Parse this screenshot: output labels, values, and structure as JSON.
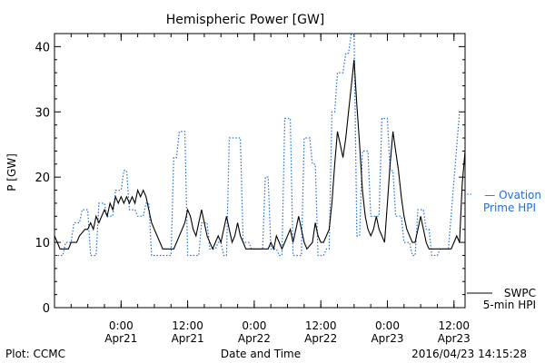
{
  "chart_data": {
    "type": "line",
    "title": "Hemispheric Power [GW]",
    "ylabel": "P [GW]",
    "xlabel": "Date and Time",
    "ylim": [
      0,
      42
    ],
    "yticks": [
      0,
      10,
      20,
      30,
      40
    ],
    "xlim": [
      "2016-04-20T12:00",
      "2016-04-23T14:00"
    ],
    "xticks": [
      {
        "t": "2016-04-21T00:00",
        "line1": "0:00",
        "line2": "Apr21"
      },
      {
        "t": "2016-04-21T12:00",
        "line1": "12:00",
        "line2": "Apr21"
      },
      {
        "t": "2016-04-22T00:00",
        "line1": "0:00",
        "line2": "Apr22"
      },
      {
        "t": "2016-04-22T12:00",
        "line1": "12:00",
        "line2": "Apr22"
      },
      {
        "t": "2016-04-23T00:00",
        "line1": "0:00",
        "line2": "Apr23"
      },
      {
        "t": "2016-04-23T12:00",
        "line1": "12:00",
        "line2": "Apr23"
      }
    ],
    "series": [
      {
        "name": "Ovation Prime HPI",
        "legend_lines": [
          "— Ovation",
          "Prime HPI"
        ],
        "color": "#1f6fd6",
        "style": "dotted",
        "points": [
          [
            "2016-04-20T12:00",
            8
          ],
          [
            "2016-04-20T13:30",
            8
          ],
          [
            "2016-04-20T14:00",
            10
          ],
          [
            "2016-04-20T15:00",
            10
          ],
          [
            "2016-04-20T15:30",
            13
          ],
          [
            "2016-04-20T16:30",
            13
          ],
          [
            "2016-04-20T17:00",
            15
          ],
          [
            "2016-04-20T18:00",
            15
          ],
          [
            "2016-04-20T18:30",
            8
          ],
          [
            "2016-04-20T19:30",
            8
          ],
          [
            "2016-04-20T20:00",
            16
          ],
          [
            "2016-04-20T21:00",
            16
          ],
          [
            "2016-04-20T21:30",
            14
          ],
          [
            "2016-04-20T22:30",
            14
          ],
          [
            "2016-04-20T23:00",
            18
          ],
          [
            "2016-04-21T00:00",
            18
          ],
          [
            "2016-04-21T00:30",
            21
          ],
          [
            "2016-04-21T01:00",
            21
          ],
          [
            "2016-04-21T01:30",
            15
          ],
          [
            "2016-04-21T02:30",
            15
          ],
          [
            "2016-04-21T03:00",
            14
          ],
          [
            "2016-04-21T04:00",
            14
          ],
          [
            "2016-04-21T04:30",
            16
          ],
          [
            "2016-04-21T05:00",
            16
          ],
          [
            "2016-04-21T05:30",
            8
          ],
          [
            "2016-04-21T09:00",
            8
          ],
          [
            "2016-04-21T09:30",
            23
          ],
          [
            "2016-04-21T10:00",
            23
          ],
          [
            "2016-04-21T10:30",
            27
          ],
          [
            "2016-04-21T11:30",
            27
          ],
          [
            "2016-04-21T12:00",
            8
          ],
          [
            "2016-04-21T14:00",
            8
          ],
          [
            "2016-04-21T14:30",
            13
          ],
          [
            "2016-04-21T15:30",
            13
          ],
          [
            "2016-04-21T16:00",
            9
          ],
          [
            "2016-04-21T17:00",
            9
          ],
          [
            "2016-04-21T17:30",
            10
          ],
          [
            "2016-04-21T18:00",
            10
          ],
          [
            "2016-04-21T18:30",
            8
          ],
          [
            "2016-04-21T19:00",
            8
          ],
          [
            "2016-04-21T19:30",
            26
          ],
          [
            "2016-04-21T21:30",
            26
          ],
          [
            "2016-04-21T22:00",
            10
          ],
          [
            "2016-04-21T23:00",
            10
          ],
          [
            "2016-04-21T23:30",
            9
          ],
          [
            "2016-04-22T01:30",
            9
          ],
          [
            "2016-04-22T02:00",
            20
          ],
          [
            "2016-04-22T02:30",
            20
          ],
          [
            "2016-04-22T03:00",
            9
          ],
          [
            "2016-04-22T04:00",
            9
          ],
          [
            "2016-04-22T04:30",
            8
          ],
          [
            "2016-04-22T05:00",
            8
          ],
          [
            "2016-04-22T05:30",
            29
          ],
          [
            "2016-04-22T06:30",
            29
          ],
          [
            "2016-04-22T07:00",
            8
          ],
          [
            "2016-04-22T08:30",
            8
          ],
          [
            "2016-04-22T09:00",
            26
          ],
          [
            "2016-04-22T10:00",
            26
          ],
          [
            "2016-04-22T10:30",
            22
          ],
          [
            "2016-04-22T11:00",
            22
          ],
          [
            "2016-04-22T11:30",
            8
          ],
          [
            "2016-04-22T12:30",
            8
          ],
          [
            "2016-04-22T13:00",
            9
          ],
          [
            "2016-04-22T13:30",
            9
          ],
          [
            "2016-04-22T14:00",
            30
          ],
          [
            "2016-04-22T14:30",
            30
          ],
          [
            "2016-04-22T15:00",
            36
          ],
          [
            "2016-04-22T16:00",
            36
          ],
          [
            "2016-04-22T16:30",
            39
          ],
          [
            "2016-04-22T17:00",
            39
          ],
          [
            "2016-04-22T17:30",
            42
          ],
          [
            "2016-04-22T18:00",
            42
          ],
          [
            "2016-04-22T18:30",
            11
          ],
          [
            "2016-04-22T19:00",
            11
          ],
          [
            "2016-04-22T19:30",
            24
          ],
          [
            "2016-04-22T20:30",
            24
          ],
          [
            "2016-04-22T21:00",
            14
          ],
          [
            "2016-04-22T22:30",
            14
          ],
          [
            "2016-04-22T23:00",
            29
          ],
          [
            "2016-04-23T00:00",
            29
          ],
          [
            "2016-04-23T00:30",
            21
          ],
          [
            "2016-04-23T01:00",
            21
          ],
          [
            "2016-04-23T01:30",
            14
          ],
          [
            "2016-04-23T02:30",
            14
          ],
          [
            "2016-04-23T03:00",
            10
          ],
          [
            "2016-04-23T04:00",
            10
          ],
          [
            "2016-04-23T04:30",
            8
          ],
          [
            "2016-04-23T05:00",
            8
          ],
          [
            "2016-04-23T05:30",
            15
          ],
          [
            "2016-04-23T06:30",
            15
          ],
          [
            "2016-04-23T07:00",
            12
          ],
          [
            "2016-04-23T07:30",
            12
          ],
          [
            "2016-04-23T08:00",
            8
          ],
          [
            "2016-04-23T09:00",
            8
          ],
          [
            "2016-04-23T09:30",
            9
          ],
          [
            "2016-04-23T11:00",
            9
          ],
          [
            "2016-04-23T13:00",
            30
          ]
        ]
      },
      {
        "name": "SWPC 5-min HPI",
        "legend_lines": [
          "SWPC",
          "5-min HPI"
        ],
        "color": "#000000",
        "style": "solid",
        "points": [
          [
            "2016-04-20T12:00",
            11
          ],
          [
            "2016-04-20T12:30",
            10
          ],
          [
            "2016-04-20T13:00",
            9
          ],
          [
            "2016-04-20T14:30",
            9
          ],
          [
            "2016-04-20T15:00",
            10
          ],
          [
            "2016-04-20T16:00",
            10
          ],
          [
            "2016-04-20T16:30",
            11
          ],
          [
            "2016-04-20T17:30",
            12
          ],
          [
            "2016-04-20T18:00",
            12
          ],
          [
            "2016-04-20T18:30",
            13
          ],
          [
            "2016-04-20T19:00",
            12
          ],
          [
            "2016-04-20T19:30",
            14
          ],
          [
            "2016-04-20T20:00",
            13
          ],
          [
            "2016-04-20T20:30",
            14
          ],
          [
            "2016-04-20T21:00",
            15
          ],
          [
            "2016-04-20T21:30",
            14
          ],
          [
            "2016-04-20T22:00",
            16
          ],
          [
            "2016-04-20T22:30",
            15
          ],
          [
            "2016-04-20T23:00",
            17
          ],
          [
            "2016-04-20T23:30",
            16
          ],
          [
            "2016-04-21T00:00",
            17
          ],
          [
            "2016-04-21T00:30",
            16
          ],
          [
            "2016-04-21T01:00",
            17
          ],
          [
            "2016-04-21T01:30",
            16
          ],
          [
            "2016-04-21T02:00",
            17
          ],
          [
            "2016-04-21T02:30",
            16
          ],
          [
            "2016-04-21T03:00",
            18
          ],
          [
            "2016-04-21T03:30",
            17
          ],
          [
            "2016-04-21T04:00",
            18
          ],
          [
            "2016-04-21T04:30",
            17
          ],
          [
            "2016-04-21T05:00",
            15
          ],
          [
            "2016-04-21T05:30",
            13
          ],
          [
            "2016-04-21T06:00",
            12
          ],
          [
            "2016-04-21T06:30",
            11
          ],
          [
            "2016-04-21T07:00",
            10
          ],
          [
            "2016-04-21T07:30",
            9
          ],
          [
            "2016-04-21T09:30",
            9
          ],
          [
            "2016-04-21T10:00",
            10
          ],
          [
            "2016-04-21T10:30",
            11
          ],
          [
            "2016-04-21T11:00",
            12
          ],
          [
            "2016-04-21T11:30",
            13
          ],
          [
            "2016-04-21T12:00",
            15
          ],
          [
            "2016-04-21T12:30",
            14
          ],
          [
            "2016-04-21T13:00",
            12
          ],
          [
            "2016-04-21T13:30",
            11
          ],
          [
            "2016-04-21T14:00",
            13
          ],
          [
            "2016-04-21T14:30",
            15
          ],
          [
            "2016-04-21T15:00",
            13
          ],
          [
            "2016-04-21T15:30",
            11
          ],
          [
            "2016-04-21T16:00",
            10
          ],
          [
            "2016-04-21T16:30",
            9
          ],
          [
            "2016-04-21T17:30",
            11
          ],
          [
            "2016-04-21T18:00",
            10
          ],
          [
            "2016-04-21T18:30",
            12
          ],
          [
            "2016-04-21T19:00",
            14
          ],
          [
            "2016-04-21T19:30",
            12
          ],
          [
            "2016-04-21T20:00",
            10
          ],
          [
            "2016-04-21T20:30",
            11
          ],
          [
            "2016-04-21T21:00",
            13
          ],
          [
            "2016-04-21T21:30",
            11
          ],
          [
            "2016-04-21T22:00",
            10
          ],
          [
            "2016-04-21T22:30",
            9
          ],
          [
            "2016-04-22T02:30",
            9
          ],
          [
            "2016-04-22T03:00",
            10
          ],
          [
            "2016-04-22T03:30",
            9
          ],
          [
            "2016-04-22T04:00",
            11
          ],
          [
            "2016-04-22T04:30",
            10
          ],
          [
            "2016-04-22T05:00",
            9
          ],
          [
            "2016-04-22T05:30",
            10
          ],
          [
            "2016-04-22T06:00",
            11
          ],
          [
            "2016-04-22T06:30",
            12
          ],
          [
            "2016-04-22T07:00",
            10
          ],
          [
            "2016-04-22T07:30",
            12
          ],
          [
            "2016-04-22T08:00",
            14
          ],
          [
            "2016-04-22T08:30",
            12
          ],
          [
            "2016-04-22T09:00",
            10
          ],
          [
            "2016-04-22T09:30",
            9
          ],
          [
            "2016-04-22T10:30",
            10
          ],
          [
            "2016-04-22T11:00",
            13
          ],
          [
            "2016-04-22T11:30",
            11
          ],
          [
            "2016-04-22T12:00",
            10
          ],
          [
            "2016-04-22T12:30",
            10
          ],
          [
            "2016-04-22T13:00",
            11
          ],
          [
            "2016-04-22T13:30",
            12
          ],
          [
            "2016-04-22T14:00",
            16
          ],
          [
            "2016-04-22T14:30",
            22
          ],
          [
            "2016-04-22T15:00",
            27
          ],
          [
            "2016-04-22T15:30",
            25
          ],
          [
            "2016-04-22T16:00",
            23
          ],
          [
            "2016-04-22T16:30",
            26
          ],
          [
            "2016-04-22T17:00",
            30
          ],
          [
            "2016-04-22T17:30",
            34
          ],
          [
            "2016-04-22T18:00",
            38
          ],
          [
            "2016-04-22T18:30",
            31
          ],
          [
            "2016-04-22T19:00",
            25
          ],
          [
            "2016-04-22T19:30",
            18
          ],
          [
            "2016-04-22T20:00",
            14
          ],
          [
            "2016-04-22T20:30",
            12
          ],
          [
            "2016-04-22T21:00",
            11
          ],
          [
            "2016-04-22T21:30",
            12
          ],
          [
            "2016-04-22T22:00",
            14
          ],
          [
            "2016-04-22T22:30",
            12
          ],
          [
            "2016-04-22T23:00",
            11
          ],
          [
            "2016-04-22T23:30",
            10
          ],
          [
            "2016-04-23T00:00",
            16
          ],
          [
            "2016-04-23T00:30",
            22
          ],
          [
            "2016-04-23T01:00",
            27
          ],
          [
            "2016-04-23T01:30",
            24
          ],
          [
            "2016-04-23T02:00",
            21
          ],
          [
            "2016-04-23T02:30",
            17
          ],
          [
            "2016-04-23T03:00",
            14
          ],
          [
            "2016-04-23T03:30",
            12
          ],
          [
            "2016-04-23T04:00",
            11
          ],
          [
            "2016-04-23T04:30",
            10
          ],
          [
            "2016-04-23T05:00",
            10
          ],
          [
            "2016-04-23T05:30",
            12
          ],
          [
            "2016-04-23T06:00",
            14
          ],
          [
            "2016-04-23T06:30",
            12
          ],
          [
            "2016-04-23T07:00",
            10
          ],
          [
            "2016-04-23T07:30",
            9
          ],
          [
            "2016-04-23T11:30",
            9
          ],
          [
            "2016-04-23T12:00",
            10
          ],
          [
            "2016-04-23T12:30",
            11
          ],
          [
            "2016-04-23T13:00",
            10
          ],
          [
            "2016-04-23T13:30",
            19
          ],
          [
            "2016-04-23T14:00",
            24
          ]
        ]
      }
    ]
  },
  "footer": {
    "credit": "Plot: CCMC",
    "timestamp": "2016/04/23 14:15:28"
  }
}
